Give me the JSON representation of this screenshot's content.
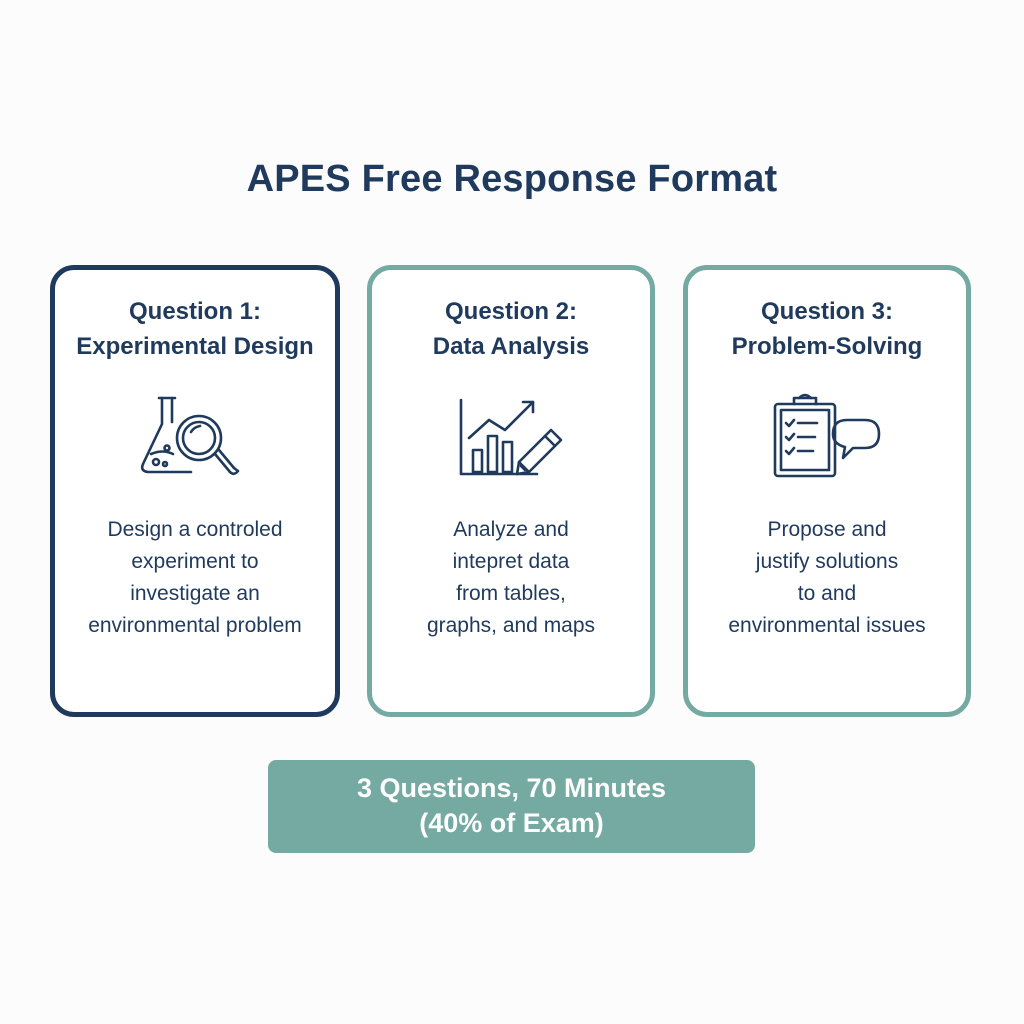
{
  "title": "APES Free Response Format",
  "cards": [
    {
      "heading": [
        "Question 1:",
        "Experimental Design"
      ],
      "icon": "flask-magnifier-icon",
      "description": [
        "Design a controled",
        "experiment to",
        "investigate an",
        "environmental problem"
      ]
    },
    {
      "heading": [
        "Question 2:",
        "Data Analysis"
      ],
      "icon": "chart-pencil-icon",
      "description": [
        "Analyze and",
        "intepret data",
        "from tables,",
        "graphs, and maps"
      ]
    },
    {
      "heading": [
        "Question 3:",
        "Problem-Solving"
      ],
      "icon": "clipboard-speech-icon",
      "description": [
        "Propose and",
        "justify solutions",
        "to and",
        "environmental issues"
      ]
    }
  ],
  "summary": [
    "3 Questions, 70 Minutes",
    "(40% of Exam)"
  ],
  "colors": {
    "navy": "#1f3a5c",
    "teal": "#74aaa2",
    "background": "#fcfcfc"
  }
}
